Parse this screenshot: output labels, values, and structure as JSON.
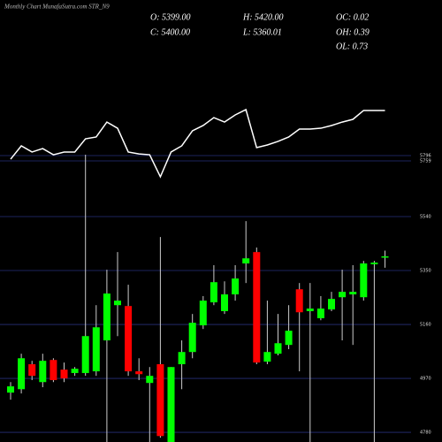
{
  "chart_data": {
    "type": "candlestick",
    "title": "Monthly Chart MunafaSutra.com STR_N9",
    "info": [
      "O: 5399.00",
      "H: 5420.00",
      "OC: 0.02",
      "C: 5400.00",
      "L: 5360.01",
      "OH: 0.39",
      "OL: 0.73"
    ],
    "up_color": "#00ff00",
    "down_color": "#ff0000",
    "grid": true,
    "ylim": [
      4746,
      6303
    ],
    "yticks": [
      4780,
      4970,
      5160,
      5350,
      5540
    ],
    "y2lim": [
      3797,
      6882
    ],
    "y2ticks": [
      5796,
      5759
    ],
    "open": [
      4920,
      4932,
      5020,
      4957,
      5035,
      5001,
      4989,
      4989,
      4995,
      5104,
      5228,
      5225,
      4995,
      4954,
      5020,
      4746,
      5020,
      5063,
      5157,
      5238,
      5207,
      5266,
      5375,
      5415,
      5029,
      5057,
      5088,
      5284,
      5207,
      5182,
      5213,
      5256,
      5266,
      5256,
      5372,
      5399
    ],
    "high": [
      4957,
      5057,
      5032,
      5057,
      5041,
      5026,
      5010,
      5758,
      5228,
      5353,
      5415,
      5300,
      5041,
      5010,
      5468,
      5010,
      5104,
      5197,
      5260,
      5369,
      5312,
      5369,
      5524,
      5431,
      5244,
      5197,
      5228,
      5306,
      5306,
      5260,
      5275,
      5353,
      5369,
      5384,
      5384,
      5420
    ],
    "low": [
      4895,
      4917,
      4964,
      4939,
      4957,
      4957,
      4979,
      4979,
      4979,
      4746,
      5119,
      4979,
      4964,
      4746,
      4761,
      4746,
      4932,
      5041,
      5144,
      5228,
      5197,
      5244,
      5306,
      5020,
      5020,
      5051,
      5073,
      4995,
      4746,
      5175,
      5207,
      5104,
      5088,
      5244,
      4746,
      5360.01
    ],
    "close": [
      4942,
      5041,
      4979,
      5032,
      4964,
      4970,
      5004,
      5119,
      5150,
      5269,
      5244,
      4995,
      4985,
      4979,
      4767,
      5010,
      5063,
      5166,
      5244,
      5309,
      5266,
      5322,
      5393,
      5026,
      5063,
      5094,
      5138,
      5203,
      5216,
      5216,
      5250,
      5275,
      5275,
      5375,
      5378,
      5400
    ],
    "series": [
      {
        "color": "#ffffff",
        "axis": "y2",
        "values": [
          5771,
          5864,
          5821,
          5845,
          5802,
          5821,
          5821,
          5913,
          5926,
          6030,
          5987,
          5821,
          5808,
          5802,
          5648,
          5821,
          5864,
          5969,
          6006,
          6061,
          6030,
          6080,
          6117,
          5852,
          5870,
          5895,
          5926,
          5981,
          5981,
          5987,
          6006,
          6030,
          6049,
          6111,
          6111,
          6111
        ]
      }
    ]
  }
}
